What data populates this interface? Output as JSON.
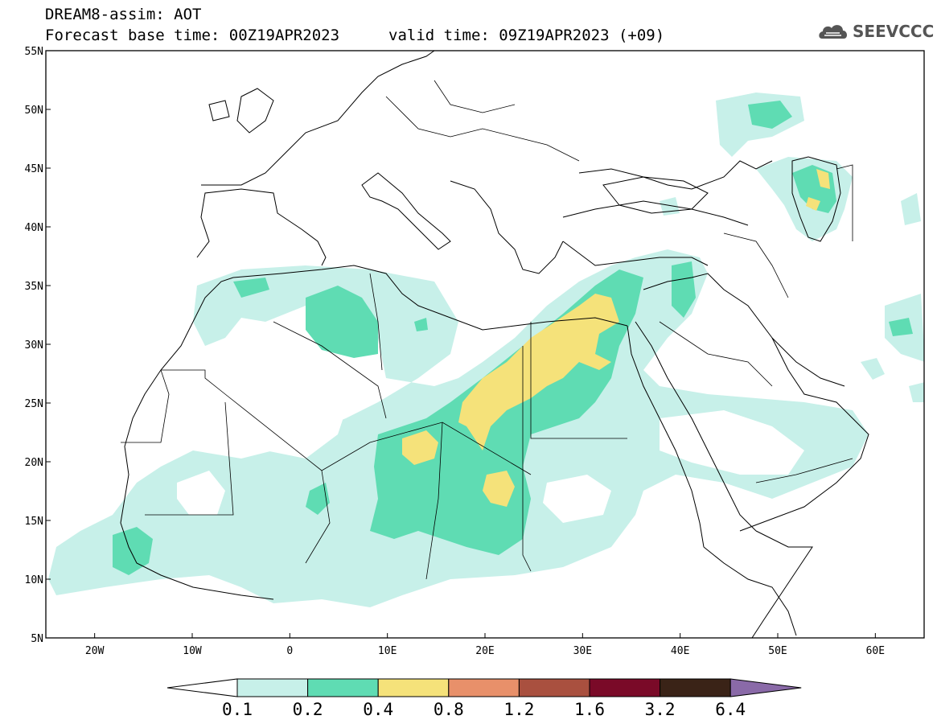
{
  "header": {
    "title_line1": "DREAM8-assim: AOT",
    "base_time": "Forecast base time: 00Z19APR2023",
    "valid_time": "valid time: 09Z19APR2023 (+09)",
    "logo_text": "SEEVCCC"
  },
  "map": {
    "lon_ticks": [
      "20W",
      "10W",
      "0",
      "10E",
      "20E",
      "30E",
      "40E",
      "50E",
      "60E"
    ],
    "lat_ticks": [
      "5N",
      "10N",
      "15N",
      "20N",
      "25N",
      "30N",
      "35N",
      "40N",
      "45N",
      "50N",
      "55N"
    ],
    "extent": {
      "lon": [
        -25,
        65
      ],
      "lat": [
        5,
        55
      ]
    }
  },
  "colorbar": {
    "labels": [
      "0.1",
      "0.2",
      "0.4",
      "0.8",
      "1.2",
      "1.6",
      "3.2",
      "6.4"
    ],
    "colors": [
      "#ffffff",
      "#c7f0e9",
      "#5fdcb3",
      "#f5e27a",
      "#e8906a",
      "#a9503f",
      "#7a0a28",
      "#3a2317",
      "#8a6aa8"
    ]
  }
}
